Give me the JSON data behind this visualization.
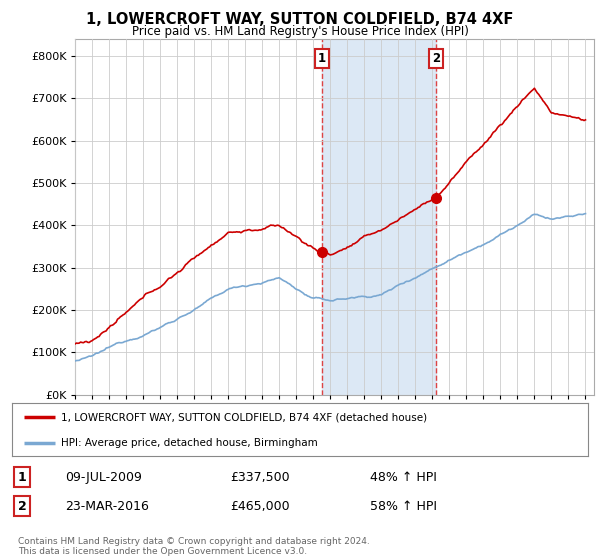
{
  "title": "1, LOWERCROFT WAY, SUTTON COLDFIELD, B74 4XF",
  "subtitle": "Price paid vs. HM Land Registry's House Price Index (HPI)",
  "ylabel_ticks": [
    0,
    100000,
    200000,
    300000,
    400000,
    500000,
    600000,
    700000,
    800000
  ],
  "ylim": [
    0,
    840000
  ],
  "xlim_start": 1995.0,
  "xlim_end": 2025.5,
  "sale1_x": 2009.52,
  "sale1_y": 337500,
  "sale1_label": "1",
  "sale1_date": "09-JUL-2009",
  "sale1_price": "£337,500",
  "sale1_hpi": "48% ↑ HPI",
  "sale2_x": 2016.23,
  "sale2_y": 465000,
  "sale2_label": "2",
  "sale2_date": "23-MAR-2016",
  "sale2_price": "£465,000",
  "sale2_hpi": "58% ↑ HPI",
  "line_color_property": "#cc0000",
  "line_color_hpi": "#7aa8d2",
  "vline_color": "#dd4444",
  "shade_color": "#dce8f5",
  "legend_label_property": "1, LOWERCROFT WAY, SUTTON COLDFIELD, B74 4XF (detached house)",
  "legend_label_hpi": "HPI: Average price, detached house, Birmingham",
  "footer": "Contains HM Land Registry data © Crown copyright and database right 2024.\nThis data is licensed under the Open Government Licence v3.0.",
  "background_color": "#ffffff",
  "grid_color": "#cccccc"
}
